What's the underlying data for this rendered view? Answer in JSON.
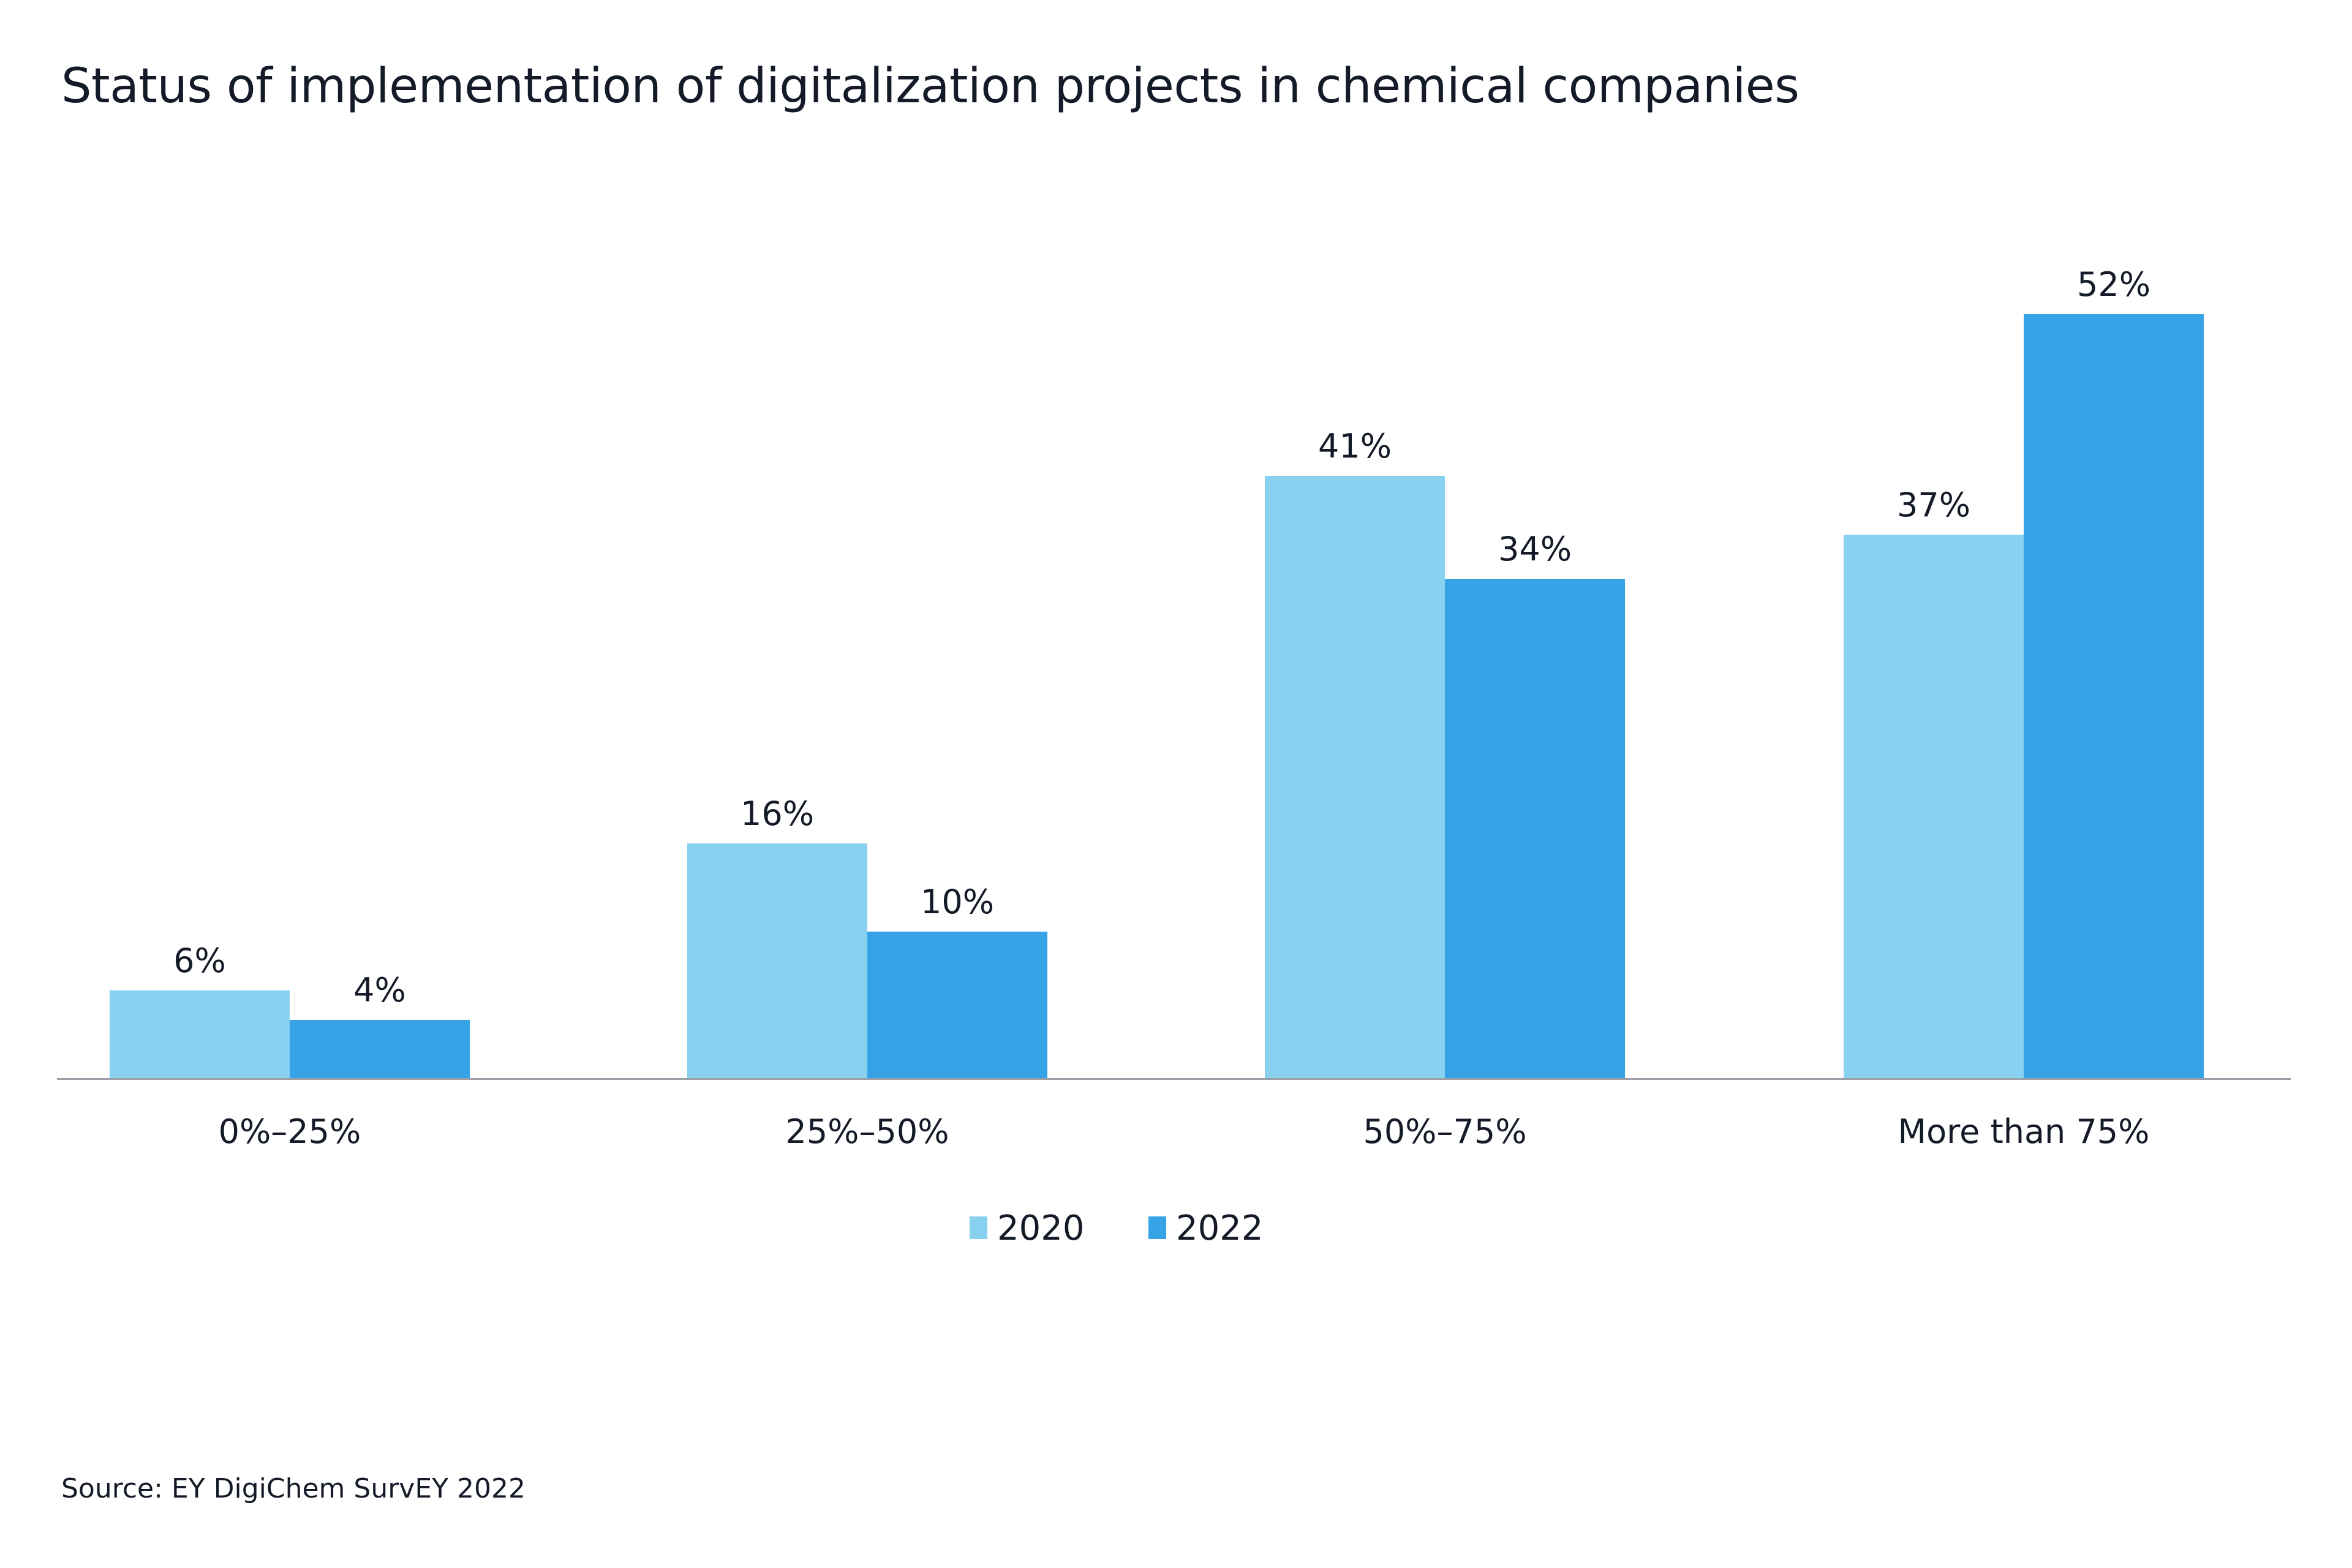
{
  "chart_data": {
    "type": "bar",
    "title": "Status of implementation of digitalization projects in chemical companies",
    "categories": [
      "0%–25%",
      "25%–50%",
      "50%–75%",
      "More than 75%"
    ],
    "series": [
      {
        "name": "2020",
        "values": [
          6,
          16,
          41,
          37
        ],
        "labels": [
          "6%",
          "16%",
          "41%",
          "37%"
        ],
        "color": "#89D1F1"
      },
      {
        "name": "2022",
        "values": [
          4,
          10,
          34,
          52
        ],
        "labels": [
          "4%",
          "10%",
          "34%",
          "52%"
        ],
        "color": "#35A3E5"
      }
    ],
    "xlabel": "",
    "ylabel": "",
    "ylim": [
      0,
      55
    ],
    "grid": false,
    "legend": "bottom-center",
    "axis_color": "#9a9fa8"
  },
  "source": "Source: EY DigiChem SurvEY 2022"
}
